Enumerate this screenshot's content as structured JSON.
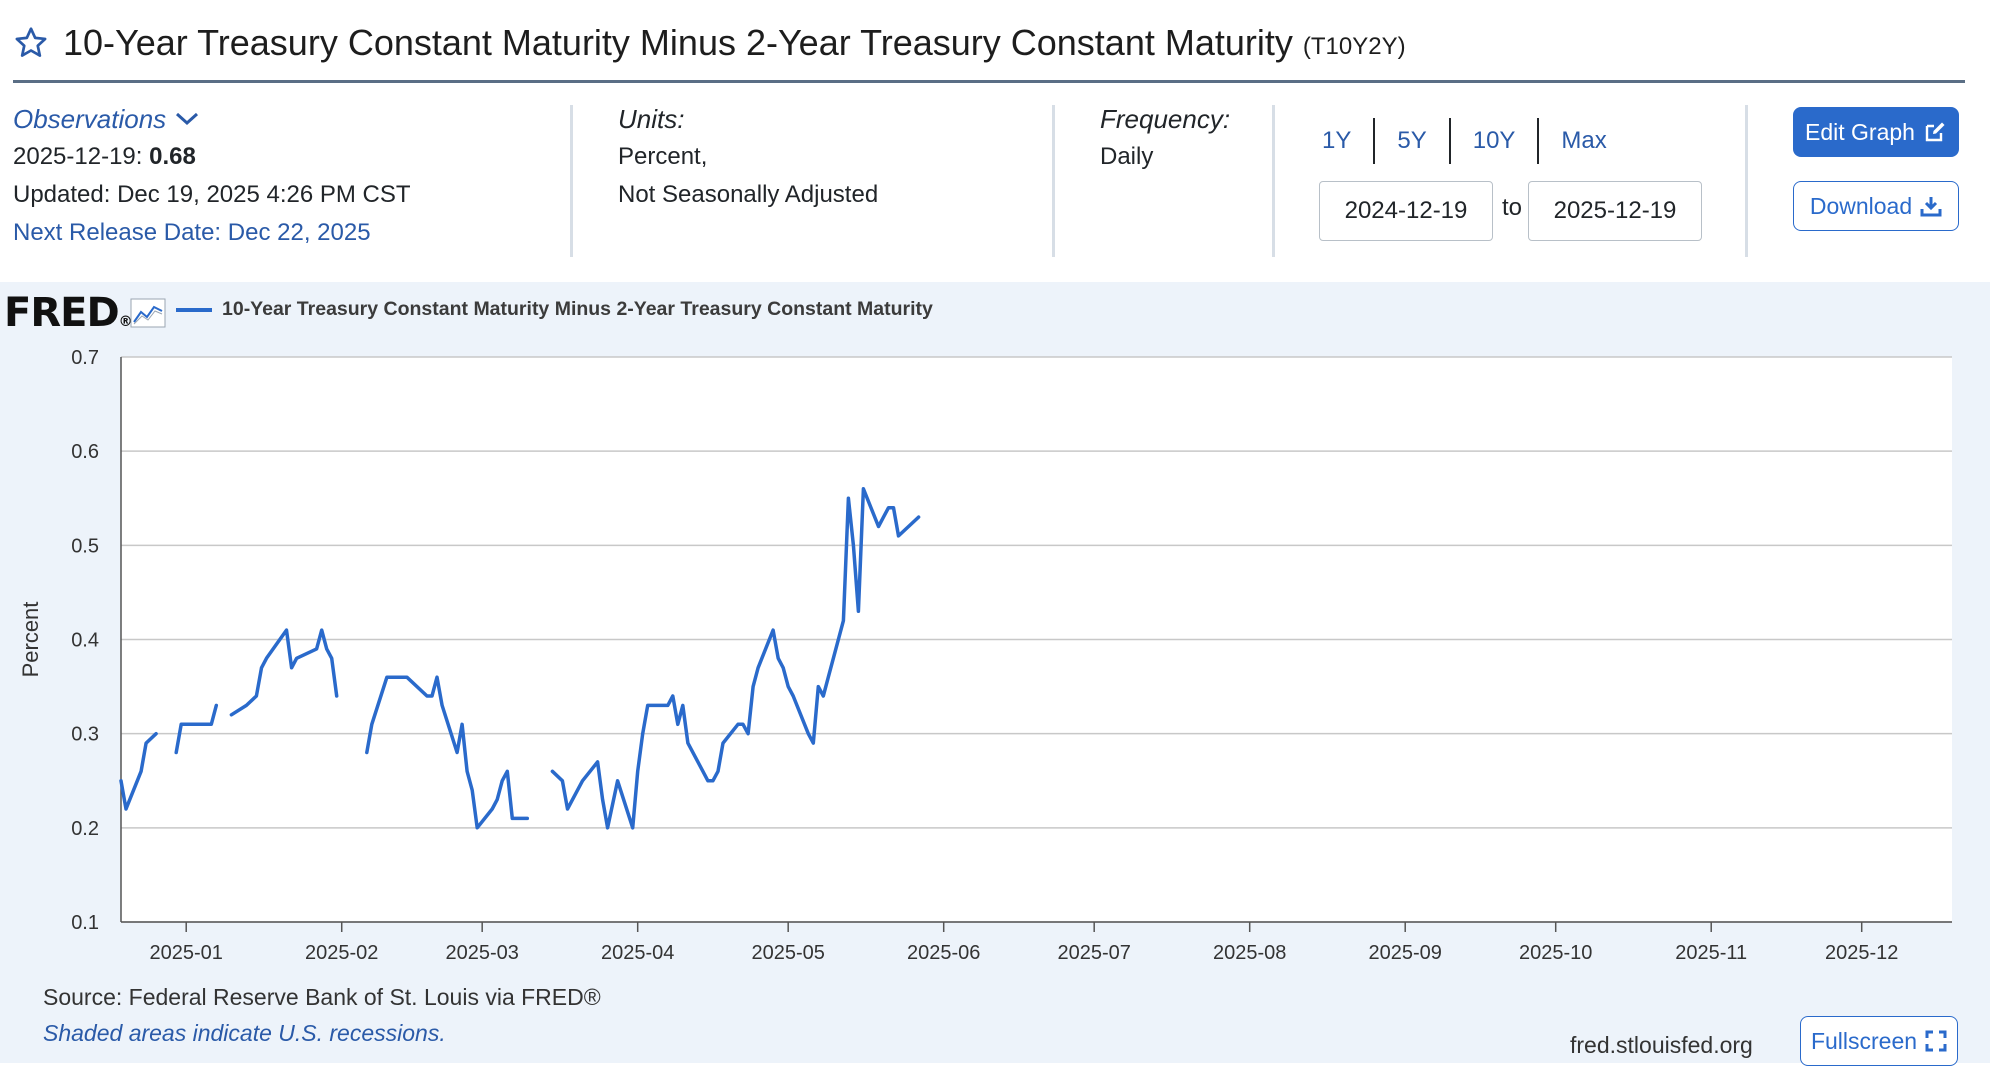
{
  "header": {
    "title": "10-Year Treasury Constant Maturity Minus 2-Year Treasury Constant Maturity",
    "series_code": "(T10Y2Y)"
  },
  "observations": {
    "label": "Observations",
    "latest_date": "2025-12-19:",
    "latest_value": "0.68",
    "updated": "Updated: Dec 19, 2025 4:26 PM CST",
    "next_release": "Next Release Date: Dec 22, 2025"
  },
  "units": {
    "label": "Units:",
    "line1": "Percent,",
    "line2": "Not Seasonally Adjusted"
  },
  "frequency": {
    "label": "Frequency:",
    "value": "Daily"
  },
  "range_buttons": [
    "1Y",
    "5Y",
    "10Y",
    "Max"
  ],
  "date_range": {
    "start": "2024-12-19",
    "to": "to",
    "end": "2025-12-19"
  },
  "buttons": {
    "edit": "Edit Graph",
    "download": "Download",
    "fullscreen": "Fullscreen"
  },
  "brand": "FRED",
  "footer": {
    "source": "Source: Federal Reserve Bank of St. Louis via FRED®",
    "shaded": "Shaded areas indicate U.S. recessions.",
    "site": "fred.stlouisfed.org"
  },
  "colors": {
    "accent": "#2a6acb",
    "panel": "#edf3fa",
    "grid": "#c8c8c8"
  },
  "chart_data": {
    "type": "line",
    "title": "10-Year Treasury Constant Maturity Minus 2-Year Treasury Constant Maturity",
    "xlabel": "",
    "ylabel": "Percent",
    "ylim": [
      0.1,
      0.7
    ],
    "yticks": [
      0.7,
      0.6,
      0.5,
      0.4,
      0.3,
      0.2,
      0.1
    ],
    "xlim": [
      "2024-12-19",
      "2025-12-19"
    ],
    "xticks": [
      "2025-01",
      "2025-02",
      "2025-03",
      "2025-04",
      "2025-05",
      "2025-06",
      "2025-07",
      "2025-08",
      "2025-09",
      "2025-10",
      "2025-11",
      "2025-12"
    ],
    "grid": true,
    "legend": "top-left",
    "series": [
      {
        "name": "10-Year Treasury Constant Maturity Minus 2-Year Treasury Constant Maturity",
        "color": "#2a6acb",
        "segments": [
          [
            [
              "2024-12-19",
              0.25
            ],
            [
              "2024-12-20",
              0.22
            ],
            [
              "2024-12-23",
              0.26
            ],
            [
              "2024-12-24",
              0.29
            ],
            [
              "2024-12-26",
              0.3
            ]
          ],
          [
            [
              "2024-12-30",
              0.28
            ],
            [
              "2024-12-31",
              0.31
            ],
            [
              "2025-01-02",
              0.31
            ],
            [
              "2025-01-03",
              0.31
            ],
            [
              "2025-01-06",
              0.31
            ],
            [
              "2025-01-07",
              0.33
            ]
          ],
          [
            [
              "2025-01-10",
              0.32
            ],
            [
              "2025-01-13",
              0.33
            ],
            [
              "2025-01-15",
              0.34
            ],
            [
              "2025-01-16",
              0.37
            ],
            [
              "2025-01-17",
              0.38
            ],
            [
              "2025-01-21",
              0.41
            ],
            [
              "2025-01-22",
              0.37
            ],
            [
              "2025-01-23",
              0.38
            ],
            [
              "2025-01-27",
              0.39
            ],
            [
              "2025-01-28",
              0.41
            ],
            [
              "2025-01-29",
              0.39
            ],
            [
              "2025-01-30",
              0.38
            ],
            [
              "2025-01-31",
              0.34
            ]
          ],
          [
            [
              "2025-02-06",
              0.28
            ],
            [
              "2025-02-07",
              0.31
            ],
            [
              "2025-02-10",
              0.36
            ],
            [
              "2025-02-11",
              0.36
            ],
            [
              "2025-02-12",
              0.36
            ],
            [
              "2025-02-13",
              0.36
            ],
            [
              "2025-02-14",
              0.36
            ],
            [
              "2025-02-18",
              0.34
            ],
            [
              "2025-02-19",
              0.34
            ],
            [
              "2025-02-20",
              0.36
            ],
            [
              "2025-02-21",
              0.33
            ],
            [
              "2025-02-24",
              0.28
            ],
            [
              "2025-02-25",
              0.31
            ],
            [
              "2025-02-26",
              0.26
            ],
            [
              "2025-02-27",
              0.24
            ],
            [
              "2025-02-28",
              0.2
            ],
            [
              "2025-03-03",
              0.22
            ],
            [
              "2025-03-04",
              0.23
            ],
            [
              "2025-03-05",
              0.25
            ],
            [
              "2025-03-06",
              0.26
            ],
            [
              "2025-03-07",
              0.21
            ],
            [
              "2025-03-10",
              0.21
            ]
          ]
        ],
        "segments_note": "",
        "segments2": [
          [
            [
              "2025-03-15",
              0.26
            ],
            [
              "2025-03-17",
              0.25
            ],
            [
              "2025-03-18",
              0.22
            ],
            [
              "2025-03-20",
              0.24
            ],
            [
              "2025-03-21",
              0.25
            ],
            [
              "2025-03-24",
              0.27
            ],
            [
              "2025-03-25",
              0.23
            ],
            [
              "2025-03-26",
              0.2
            ],
            [
              "2025-03-28",
              0.25
            ],
            [
              "2025-03-31",
              0.2
            ],
            [
              "2025-04-01",
              0.26
            ],
            [
              "2025-04-02",
              0.3
            ],
            [
              "2025-04-03",
              0.33
            ],
            [
              "2025-04-04",
              0.33
            ],
            [
              "2025-04-07",
              0.33
            ],
            [
              "2025-04-08",
              0.34
            ],
            [
              "2025-04-09",
              0.31
            ],
            [
              "2025-04-10",
              0.33
            ],
            [
              "2025-04-11",
              0.29
            ],
            [
              "2025-04-14",
              0.26
            ],
            [
              "2025-04-15",
              0.25
            ],
            [
              "2025-04-16",
              0.25
            ],
            [
              "2025-04-17",
              0.26
            ],
            [
              "2025-04-18",
              0.29
            ],
            [
              "2025-04-21",
              0.31
            ],
            [
              "2025-04-22",
              0.31
            ],
            [
              "2025-04-23",
              0.3
            ],
            [
              "2025-04-24",
              0.35
            ],
            [
              "2025-04-25",
              0.37
            ],
            [
              "2025-04-28",
              0.41
            ],
            [
              "2025-04-29",
              0.38
            ],
            [
              "2025-04-30",
              0.37
            ],
            [
              "2025-05-01",
              0.35
            ],
            [
              "2025-05-02",
              0.34
            ],
            [
              "2025-05-05",
              0.3
            ],
            [
              "2025-05-06",
              0.29
            ],
            [
              "2025-05-07",
              0.35
            ],
            [
              "2025-05-08",
              0.34
            ],
            [
              "2025-05-09",
              0.36
            ],
            [
              "2025-05-12",
              0.42
            ],
            [
              "2025-05-13",
              0.55
            ],
            [
              "2025-05-14",
              0.5
            ],
            [
              "2025-05-15",
              0.43
            ],
            [
              "2025-05-16",
              0.56
            ],
            [
              "2025-05-19",
              0.52
            ],
            [
              "2025-05-20",
              0.53
            ],
            [
              "2025-05-21",
              0.54
            ],
            [
              "2025-05-22",
              0.54
            ],
            [
              "2025-05-23",
              0.51
            ],
            [
              "2025-05-27",
              0.53
            ]
          ]
        ]
      }
    ]
  }
}
